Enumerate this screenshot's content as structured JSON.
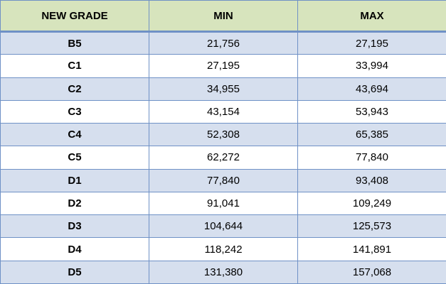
{
  "table": {
    "headers": {
      "grade": "NEW GRADE",
      "min": "MIN",
      "max": "MAX"
    },
    "rows": [
      {
        "grade": "B5",
        "min": "21,756",
        "max": "27,195"
      },
      {
        "grade": "C1",
        "min": "27,195",
        "max": "33,994"
      },
      {
        "grade": "C2",
        "min": "34,955",
        "max": "43,694"
      },
      {
        "grade": "C3",
        "min": "43,154",
        "max": "53,943"
      },
      {
        "grade": "C4",
        "min": "52,308",
        "max": "65,385"
      },
      {
        "grade": "C5",
        "min": "62,272",
        "max": "77,840"
      },
      {
        "grade": "D1",
        "min": "77,840",
        "max": "93,408"
      },
      {
        "grade": "D2",
        "min": "91,041",
        "max": "109,249"
      },
      {
        "grade": "D3",
        "min": "104,644",
        "max": "125,573"
      },
      {
        "grade": "D4",
        "min": "118,242",
        "max": "141,891"
      },
      {
        "grade": "D5",
        "min": "131,380",
        "max": "157,068"
      }
    ]
  },
  "colors": {
    "header_background": "#d7e4bd",
    "alternate_row_background": "#d6dfee",
    "border": "#6f91c6"
  }
}
